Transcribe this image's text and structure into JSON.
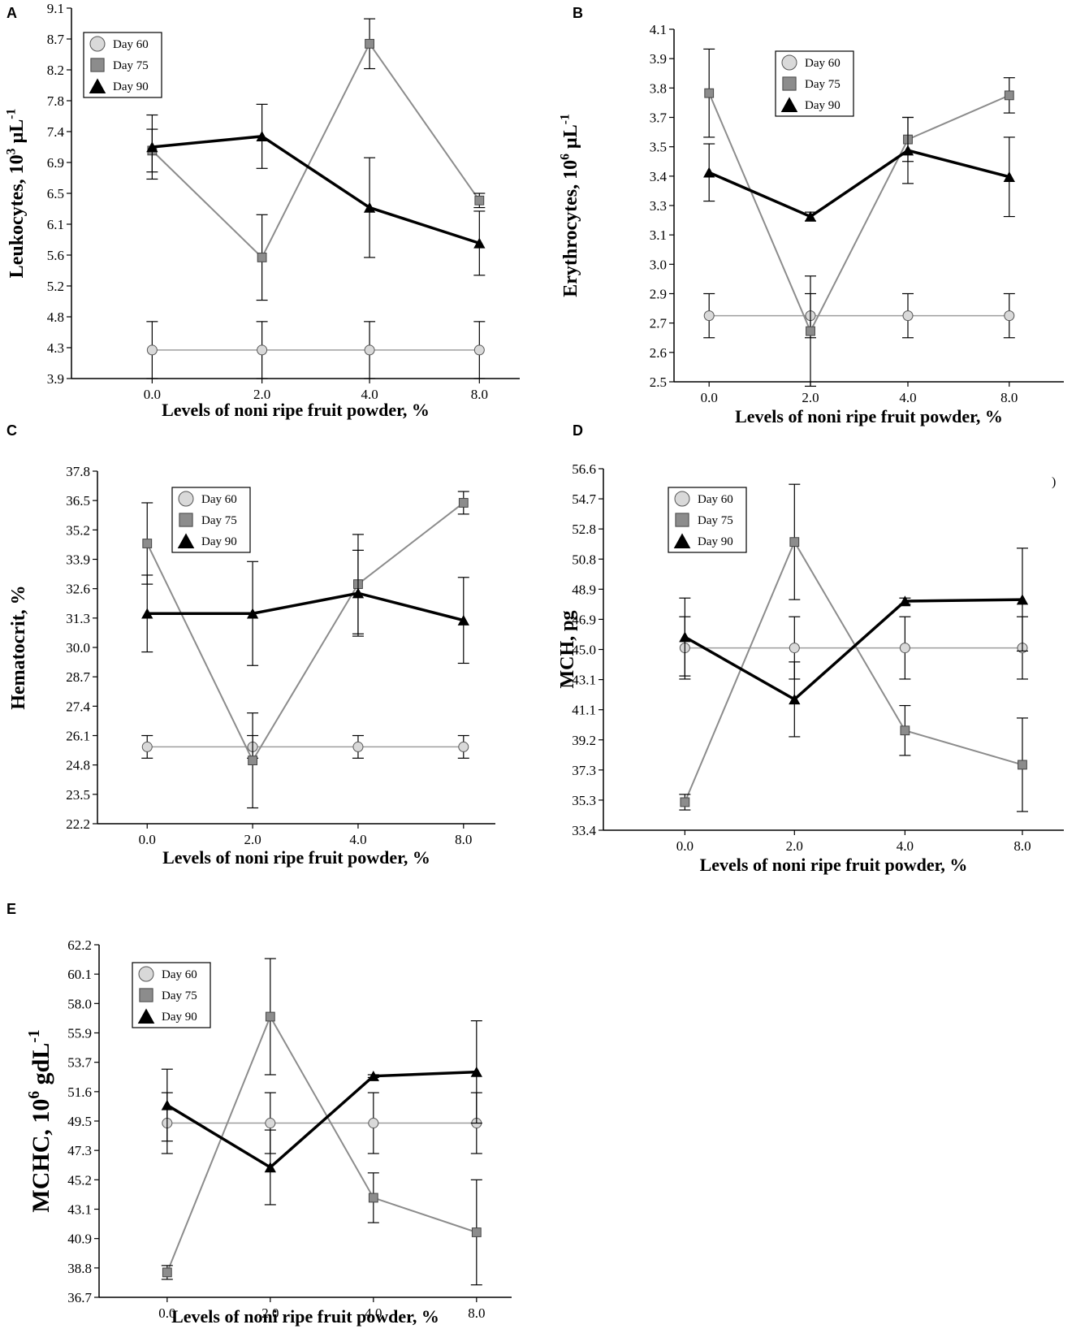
{
  "figure": {
    "series_names": [
      "Day 60",
      "Day 75",
      "Day 90"
    ],
    "colors": {
      "day60_marker": "#d9d9d9",
      "day60_line": "#9e9e9e",
      "day75_marker": "#8c8c8c",
      "day75_line": "#8c8c8c",
      "day90_marker": "#000000",
      "day90_line": "#000000",
      "axis": "#000000"
    }
  },
  "chart_data": [
    {
      "id": "A",
      "type": "line",
      "panel_label": "A",
      "xlabel": "Levels of noni ripe fruit powder, %",
      "ylabel": "Leukocytes, 10",
      "ylabel_sup": "3",
      "ylabel_unit": " µL",
      "ylabel_unit_sup": "-1",
      "categories": [
        "0.0",
        "2.0",
        "4.0",
        "8.0"
      ],
      "yticks": [
        "3.9",
        "4.3",
        "4.8",
        "5.2",
        "5.6",
        "6.1",
        "6.5",
        "6.9",
        "7.4",
        "7.8",
        "8.2",
        "8.7",
        "9.1"
      ],
      "ylim": [
        3.9,
        9.1
      ],
      "legend_position": "top-left",
      "series": [
        {
          "name": "Day 60",
          "values": [
            4.3,
            4.3,
            4.3,
            4.3
          ],
          "err": [
            0.4,
            0.4,
            0.4,
            0.4
          ]
        },
        {
          "name": "Day 75",
          "values": [
            7.1,
            5.6,
            8.6,
            6.4
          ],
          "err": [
            0.3,
            0.6,
            0.35,
            0.1
          ]
        },
        {
          "name": "Day 90",
          "values": [
            7.15,
            7.3,
            6.3,
            5.8
          ],
          "err": [
            0.45,
            0.45,
            0.7,
            0.45
          ]
        }
      ]
    },
    {
      "id": "B",
      "type": "line",
      "panel_label": "B",
      "xlabel": "Levels of noni ripe fruit powder, %",
      "ylabel": "Erythrocytes, 10",
      "ylabel_sup": "6",
      "ylabel_unit": " µL",
      "ylabel_unit_sup": "-1",
      "categories": [
        "0.0",
        "2.0",
        "4.0",
        "8.0"
      ],
      "yticks": [
        "2.5",
        "2.6",
        "2.7",
        "2.9",
        "3.0",
        "3.1",
        "3.3",
        "3.4",
        "3.5",
        "3.7",
        "3.8",
        "3.9",
        "4.1"
      ],
      "ylim": [
        2.5,
        4.1
      ],
      "legend_position": "top-center",
      "series": [
        {
          "name": "Day 60",
          "values": [
            2.8,
            2.8,
            2.8,
            2.8
          ],
          "err": [
            0.1,
            0.1,
            0.1,
            0.1
          ]
        },
        {
          "name": "Day 75",
          "values": [
            3.81,
            2.73,
            3.6,
            3.8
          ],
          "err": [
            0.2,
            0.25,
            0.1,
            0.08
          ]
        },
        {
          "name": "Day 90",
          "values": [
            3.45,
            3.25,
            3.55,
            3.43
          ],
          "err": [
            0.13,
            0.02,
            0.15,
            0.18
          ]
        }
      ]
    },
    {
      "id": "C",
      "type": "line",
      "panel_label": "C",
      "xlabel": "Levels of noni ripe fruit powder, %",
      "ylabel": "Hematocrit, %",
      "ylabel_sup": "",
      "ylabel_unit": "",
      "ylabel_unit_sup": "",
      "categories": [
        "0.0",
        "2.0",
        "4.0",
        "8.0"
      ],
      "yticks": [
        "22.2",
        "23.5",
        "24.8",
        "26.1",
        "27.4",
        "28.7",
        "30.0",
        "31.3",
        "32.6",
        "33.9",
        "35.2",
        "36.5",
        "37.8"
      ],
      "ylim": [
        22.2,
        37.8
      ],
      "legend_position": "top-center",
      "series": [
        {
          "name": "Day 60",
          "values": [
            25.6,
            25.6,
            25.6,
            25.6
          ],
          "err": [
            0.5,
            0.5,
            0.5,
            0.5
          ]
        },
        {
          "name": "Day 75",
          "values": [
            34.6,
            25.0,
            32.8,
            36.4
          ],
          "err": [
            1.8,
            2.1,
            2.2,
            0.5
          ]
        },
        {
          "name": "Day 90",
          "values": [
            31.5,
            31.5,
            32.4,
            31.2
          ],
          "err": [
            1.7,
            2.3,
            1.9,
            1.9
          ]
        }
      ]
    },
    {
      "id": "D",
      "type": "line",
      "panel_label": "D",
      "xlabel": "Levels of noni ripe fruit powder, %",
      "ylabel": "MCH, pg",
      "ylabel_sup": "",
      "ylabel_unit": "",
      "ylabel_unit_sup": "",
      "categories": [
        "0.0",
        "2.0",
        "4.0",
        "8.0"
      ],
      "yticks": [
        "33.4",
        "35.3",
        "37.3",
        "39.2",
        "41.1",
        "43.1",
        "45.0",
        "46.9",
        "48.9",
        "50.8",
        "52.8",
        "54.7",
        "56.6"
      ],
      "ylim": [
        33.4,
        56.6
      ],
      "legend_position": "top-center",
      "series": [
        {
          "name": "Day 60",
          "values": [
            45.1,
            45.1,
            45.1,
            45.1
          ],
          "err": [
            2.0,
            2.0,
            2.0,
            2.0
          ]
        },
        {
          "name": "Day 75",
          "values": [
            35.2,
            51.9,
            39.8,
            37.6
          ],
          "err": [
            0.5,
            3.7,
            1.6,
            3.0
          ]
        },
        {
          "name": "Day 90",
          "values": [
            45.8,
            41.8,
            48.1,
            48.2
          ],
          "err": [
            2.5,
            2.4,
            0.2,
            3.3
          ]
        }
      ]
    },
    {
      "id": "E",
      "type": "line",
      "panel_label": "E",
      "xlabel": "Levels of noni ripe fruit powder, %",
      "ylabel": "MCHC, 10",
      "ylabel_sup": "6",
      "ylabel_unit": " gdL",
      "ylabel_unit_sup": "-1",
      "categories": [
        "0.0",
        "2.0",
        "4.0",
        "8.0"
      ],
      "yticks": [
        "36.7",
        "38.8",
        "40.9",
        "43.1",
        "45.2",
        "47.3",
        "49.5",
        "51.6",
        "53.7",
        "55.9",
        "58.0",
        "60.1",
        "62.2"
      ],
      "ylim": [
        36.7,
        62.2
      ],
      "legend_position": "top-center",
      "series": [
        {
          "name": "Day 60",
          "values": [
            49.3,
            49.3,
            49.3,
            49.3
          ],
          "err": [
            2.2,
            2.2,
            2.2,
            2.2
          ]
        },
        {
          "name": "Day 75",
          "values": [
            38.5,
            57.0,
            43.9,
            41.4
          ],
          "err": [
            0.5,
            4.2,
            1.8,
            3.8
          ]
        },
        {
          "name": "Day 90",
          "values": [
            50.6,
            46.1,
            52.7,
            53.0
          ],
          "err": [
            2.6,
            2.7,
            0.1,
            3.7
          ]
        }
      ]
    }
  ]
}
